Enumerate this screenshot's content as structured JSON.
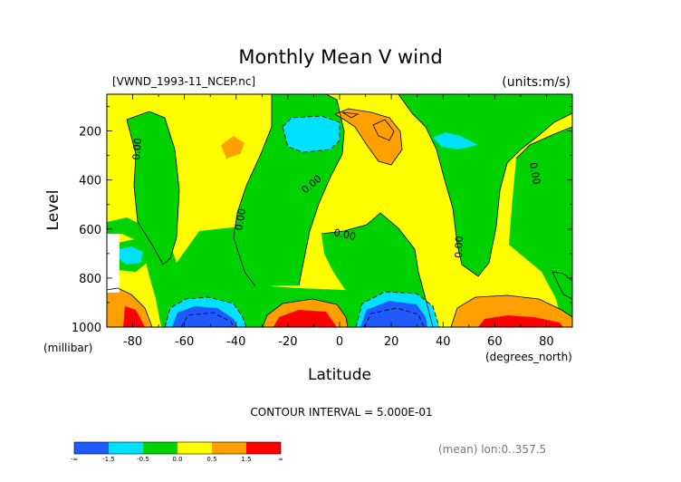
{
  "chart_data": {
    "type": "heatmap",
    "title": "Monthly Mean V wind",
    "file_label": "[VWND_1993-11_NCEP.nc]",
    "units_label": "(units:m/s)",
    "xlabel": "Latitude",
    "x_units": "(degrees_north)",
    "ylabel": "Level",
    "y_units": "(millibar)",
    "xlim": [
      -90,
      90
    ],
    "ylim": [
      1000,
      50
    ],
    "y_inverted": true,
    "x_ticks": [
      -80,
      -60,
      -40,
      -20,
      0,
      20,
      40,
      60,
      80
    ],
    "y_ticks": [
      200,
      400,
      600,
      800,
      1000
    ],
    "contour_interval_text": "CONTOUR INTERVAL = 5.000E-01",
    "contour_labels": [
      "0.00",
      "0.00",
      "0.00",
      "0.00",
      "0.00",
      "0.00"
    ],
    "footer_note": "(mean) lon:0..357.5",
    "colorbar": {
      "boundary_labels": [
        "-∞",
        "-1.5",
        "-0.5",
        "0.0",
        "0.5",
        "1.5",
        "∞"
      ],
      "bins": [
        {
          "range": [
            null,
            -1.5
          ],
          "color": "#1e5aff"
        },
        {
          "range": [
            -1.5,
            -0.5
          ],
          "color": "#00e1ff"
        },
        {
          "range": [
            -0.5,
            0.0
          ],
          "color": "#00d200"
        },
        {
          "range": [
            0.0,
            0.5
          ],
          "color": "#ffff00"
        },
        {
          "range": [
            0.5,
            1.5
          ],
          "color": "#ffa000"
        },
        {
          "range": [
            1.5,
            null
          ],
          "color": "#ff0000"
        }
      ]
    }
  }
}
